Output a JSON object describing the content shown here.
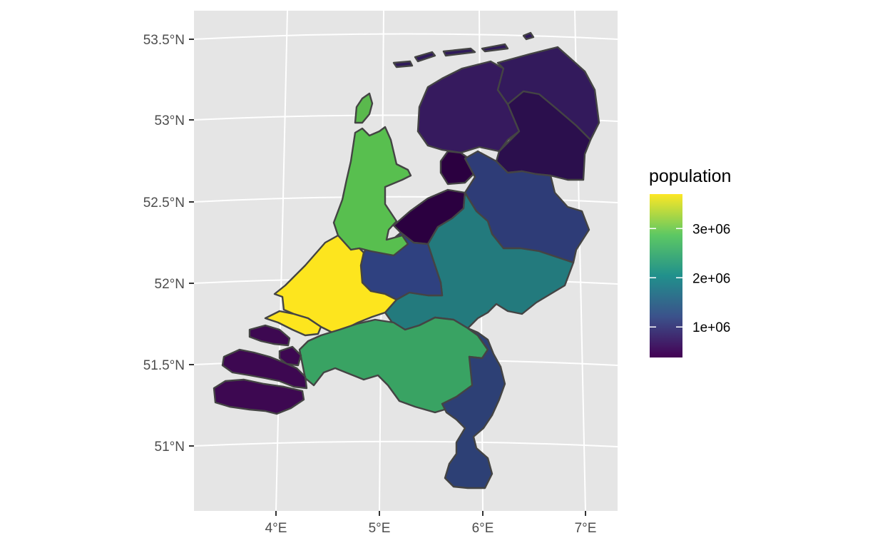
{
  "chart_data": {
    "type": "choropleth",
    "legend": {
      "title": "population",
      "placement": "right",
      "ticks": [
        {
          "value": 3000000,
          "label": "3e+06"
        },
        {
          "value": 2000000,
          "label": "2e+06"
        },
        {
          "value": 1000000,
          "label": "1e+06"
        }
      ],
      "range": [
        380000,
        3700000
      ]
    },
    "y_ticks": [
      "53.5°N",
      "53°N",
      "52.5°N",
      "52°N",
      "51.5°N",
      "51°N"
    ],
    "x_ticks": [
      "4°E",
      "5°E",
      "6°E",
      "7°E"
    ],
    "grid": true,
    "colors": {
      "panel_background": "#e5e5e5",
      "grid": "#ffffff",
      "province_border": "#444444",
      "scale": [
        "#440154",
        "#3b528b",
        "#21908c",
        "#5dc863",
        "#fde725"
      ]
    },
    "regions": [
      {
        "id": "friesland",
        "population": 650000
      },
      {
        "id": "groningen",
        "population": 585000
      },
      {
        "id": "drenthe",
        "population": 490000
      },
      {
        "id": "flevoland",
        "population": 420000
      },
      {
        "id": "overijssel",
        "population": 1160000
      },
      {
        "id": "gelderland",
        "population": 2090000
      },
      {
        "id": "utrecht",
        "population": 1350000
      },
      {
        "id": "noord-holland",
        "population": 2880000
      },
      {
        "id": "zuid-holland",
        "population": 3700000
      },
      {
        "id": "zeeland",
        "population": 385000
      },
      {
        "id": "noord-brabant",
        "population": 2560000
      },
      {
        "id": "limburg",
        "population": 1115000
      }
    ]
  }
}
